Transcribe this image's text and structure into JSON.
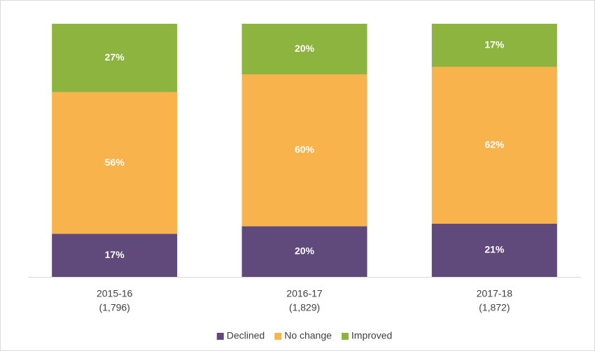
{
  "chart_data": {
    "type": "stacked_bar",
    "categories": [
      [
        "2015-16",
        "(1,796)"
      ],
      [
        "2016-17",
        "(1,829)"
      ],
      [
        "2017-18",
        "(1,872)"
      ]
    ],
    "series": [
      {
        "name": "Declined",
        "color": "#604a7b",
        "values": [
          17,
          20,
          21
        ],
        "value_labels": [
          "17%",
          "20%",
          "21%"
        ]
      },
      {
        "name": "No change",
        "color": "#f8b34c",
        "values": [
          56,
          60,
          62
        ],
        "value_labels": [
          "56%",
          "60%",
          "62%"
        ]
      },
      {
        "name": "Improved",
        "color": "#8db43e",
        "values": [
          27,
          20,
          17
        ],
        "value_labels": [
          "27%",
          "20%",
          "17%"
        ]
      }
    ],
    "ylim": [
      0,
      100
    ],
    "legend": "bottom"
  }
}
